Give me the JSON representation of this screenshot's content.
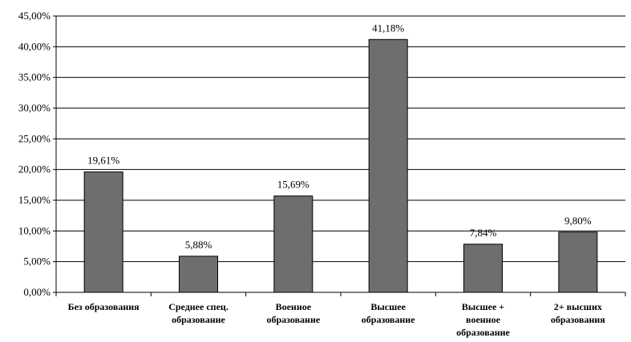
{
  "chart_data": {
    "type": "bar",
    "categories": [
      [
        "Без образования"
      ],
      [
        "Среднее спец.",
        "образование"
      ],
      [
        "Военное",
        "образование"
      ],
      [
        "Высшее",
        "образование"
      ],
      [
        "Высшее +",
        "военное",
        "образование"
      ],
      [
        "2+ высших",
        "образования"
      ]
    ],
    "values": [
      19.61,
      5.88,
      15.69,
      41.18,
      7.84,
      9.8
    ],
    "value_labels": [
      "19,61%",
      "5,88%",
      "15,69%",
      "41,18%",
      "7,84%",
      "9,80%"
    ],
    "y_ticks": [
      0,
      5,
      10,
      15,
      20,
      25,
      30,
      35,
      40,
      45
    ],
    "y_tick_labels": [
      "0,00%",
      "5,00%",
      "10,00%",
      "15,00%",
      "20,00%",
      "25,00%",
      "30,00%",
      "35,00%",
      "40,00%",
      "45,00%"
    ],
    "ylim": [
      0,
      45
    ],
    "grid": true,
    "legend": "none",
    "bar_color": "#6e6e6e",
    "bar_edge_color": "#000000",
    "grid_color": "#000000"
  }
}
